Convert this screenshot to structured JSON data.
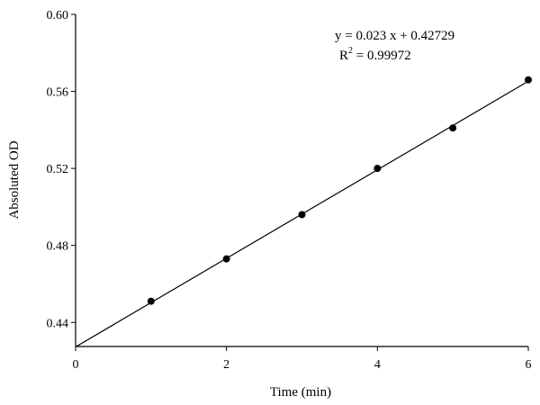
{
  "chart_data": {
    "type": "scatter",
    "xlabel": "Time (min)",
    "ylabel": "Absoluted OD",
    "xlim": [
      0,
      6
    ],
    "ylim": [
      0.4275,
      0.6
    ],
    "x_ticks": [
      0,
      2,
      4,
      6
    ],
    "x_tick_labels": [
      "0",
      "2",
      "4",
      "6"
    ],
    "y_ticks": [
      0.44,
      0.48,
      0.52,
      0.56,
      0.6
    ],
    "y_tick_labels": [
      "0.44",
      "0.48",
      "0.52",
      "0.56",
      "0.60"
    ],
    "grid": false,
    "series": [
      {
        "x": [
          1,
          2,
          3,
          4,
          5,
          6
        ],
        "y": [
          0.451,
          0.473,
          0.496,
          0.52,
          0.541,
          0.566
        ],
        "marker": "filled-circle",
        "color": "#000000"
      }
    ],
    "fit_line": {
      "slope": 0.023,
      "intercept": 0.42729,
      "x_range": [
        0,
        6
      ],
      "color": "#000000"
    },
    "annotations": {
      "equation": "y = 0.023 x + 0.42729",
      "r2_prefix": "R",
      "r2_sup": "2",
      "r2_value": " = 0.99972"
    }
  }
}
